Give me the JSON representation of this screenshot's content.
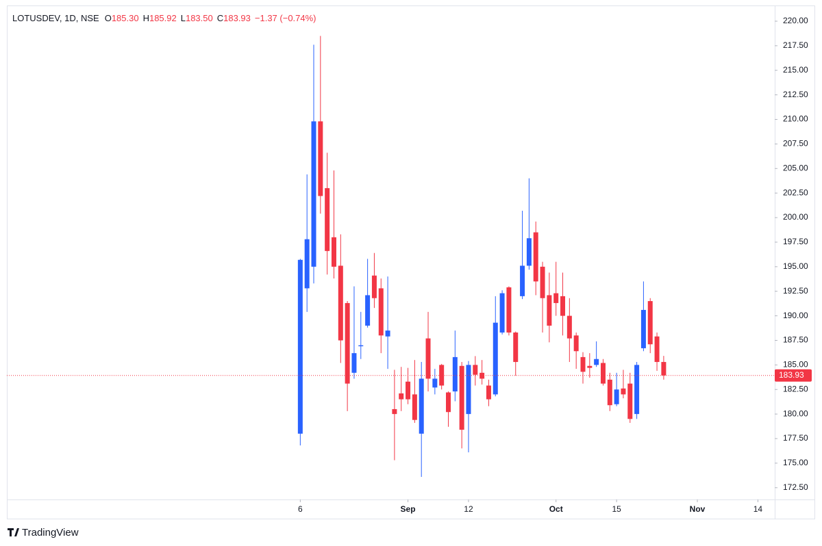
{
  "chart_data": {
    "type": "candlestick",
    "header": {
      "symbol": "LOTUSDEV, 1D, NSE",
      "fields": [
        {
          "label": "O",
          "value": "185.30"
        },
        {
          "label": "H",
          "value": "185.92"
        },
        {
          "label": "L",
          "value": "183.50"
        },
        {
          "label": "C",
          "value": "183.93"
        }
      ],
      "change": "−1.37 (−0.74%)"
    },
    "brand": "TradingView",
    "up_color": "#2962ff",
    "down_color": "#f23645",
    "x": [
      0,
      1,
      2,
      3,
      4,
      5,
      6,
      7,
      8,
      9,
      10,
      11,
      12,
      13,
      14,
      15,
      16,
      17,
      18,
      19,
      20,
      21,
      22,
      23,
      24,
      25,
      26,
      27,
      28,
      29,
      30,
      31,
      32,
      33,
      34,
      35,
      36,
      37,
      38,
      39,
      40,
      41,
      42,
      43,
      44,
      45,
      46,
      47,
      48,
      49,
      50,
      51,
      52,
      53,
      54
    ],
    "open": [
      178,
      192.8,
      195,
      209.8,
      203,
      198,
      195.1,
      191.3,
      184.2,
      186.9,
      189,
      194.1,
      192.8,
      187.9,
      180.5,
      182.1,
      183.3,
      182,
      178,
      187.7,
      182.7,
      185,
      182.2,
      182.3,
      184.9,
      180,
      185,
      184.2,
      182.9,
      182,
      188.3,
      192.9,
      188.3,
      192,
      195.1,
      198.5,
      195,
      192.1,
      192.3,
      192,
      190,
      188,
      185.8,
      184.9,
      185,
      185.2,
      183.5,
      181,
      182.6,
      183.1,
      180,
      186.7,
      191.5,
      187.9,
      185.3
    ],
    "high": [
      195.8,
      204.4,
      217.6,
      218.5,
      206.6,
      204.8,
      198.3,
      191.5,
      193,
      190.4,
      195.8,
      196.4,
      193.8,
      194,
      184.5,
      184.8,
      184.7,
      185.5,
      185.3,
      190.4,
      184.6,
      185.1,
      182.3,
      188.5,
      185.3,
      185.4,
      185.9,
      185.5,
      183.5,
      192,
      192.6,
      193,
      188.4,
      200.7,
      204,
      199.6,
      195.5,
      194.4,
      195.5,
      194.4,
      191.8,
      188.3,
      186.3,
      186.2,
      187.4,
      185.6,
      184.2,
      184.2,
      184.5,
      184.2,
      185.3,
      193.5,
      191.8,
      188.3,
      185.92
    ],
    "low": [
      176.8,
      190.4,
      193.3,
      200.4,
      194.2,
      193.8,
      185.2,
      180.3,
      183.6,
      185.6,
      188.8,
      190.8,
      186.2,
      184.6,
      175.3,
      180.3,
      181,
      179.1,
      173.6,
      182.3,
      182,
      182.5,
      178.7,
      181.3,
      176.5,
      176.1,
      182.9,
      183,
      180.8,
      181.8,
      188.1,
      188,
      183.9,
      191.7,
      194.7,
      192.1,
      188.3,
      187.3,
      190,
      188,
      185.3,
      184.6,
      183.1,
      183.7,
      184.8,
      182.9,
      180.3,
      180.8,
      181.6,
      179.1,
      179.5,
      186.4,
      186.2,
      184.4,
      183.5
    ],
    "close": [
      195.7,
      197.8,
      209.8,
      202.2,
      196.6,
      195,
      187.5,
      183.1,
      186.2,
      187,
      192.1,
      191.8,
      188,
      188.5,
      180,
      181.5,
      181.5,
      179.4,
      183.6,
      183.6,
      183.6,
      182.9,
      180.2,
      185.8,
      178.4,
      185,
      184,
      183.6,
      181.5,
      189.3,
      192.3,
      188.3,
      185.3,
      195.1,
      197.9,
      193.5,
      191.8,
      189,
      191.3,
      190,
      187.7,
      186.4,
      184.3,
      184.7,
      185.6,
      183.1,
      180.9,
      182.5,
      182,
      179.5,
      185,
      190.6,
      187.1,
      185.3,
      183.93
    ],
    "last_price": 183.93,
    "xlim": [
      -43.6,
      70.5
    ],
    "xticks": [
      {
        "value": 0,
        "label": "6"
      },
      {
        "value": 16,
        "label": "Sep"
      },
      {
        "value": 25,
        "label": "12"
      },
      {
        "value": 38,
        "label": "Oct"
      },
      {
        "value": 47,
        "label": "15"
      },
      {
        "value": 59,
        "label": "Nov"
      },
      {
        "value": 68,
        "label": "14"
      }
    ],
    "ylim": [
      171.3,
      221.6
    ],
    "yticks": [
      {
        "value": 172.5,
        "label": "172.50"
      },
      {
        "value": 175,
        "label": "175.00"
      },
      {
        "value": 177.5,
        "label": "177.50"
      },
      {
        "value": 180,
        "label": "180.00"
      },
      {
        "value": 182.5,
        "label": "182.50"
      },
      {
        "value": 185,
        "label": "185.00"
      },
      {
        "value": 187.5,
        "label": "187.50"
      },
      {
        "value": 190,
        "label": "190.00"
      },
      {
        "value": 192.5,
        "label": "192.50"
      },
      {
        "value": 195,
        "label": "195.00"
      },
      {
        "value": 197.5,
        "label": "197.50"
      },
      {
        "value": 200,
        "label": "200.00"
      },
      {
        "value": 202.5,
        "label": "202.50"
      },
      {
        "value": 205,
        "label": "205.00"
      },
      {
        "value": 207.5,
        "label": "207.50"
      },
      {
        "value": 210,
        "label": "210.00"
      },
      {
        "value": 212.5,
        "label": "212.50"
      },
      {
        "value": 215,
        "label": "215.00"
      },
      {
        "value": 217.5,
        "label": "217.50"
      },
      {
        "value": 220,
        "label": "220.00"
      }
    ]
  }
}
